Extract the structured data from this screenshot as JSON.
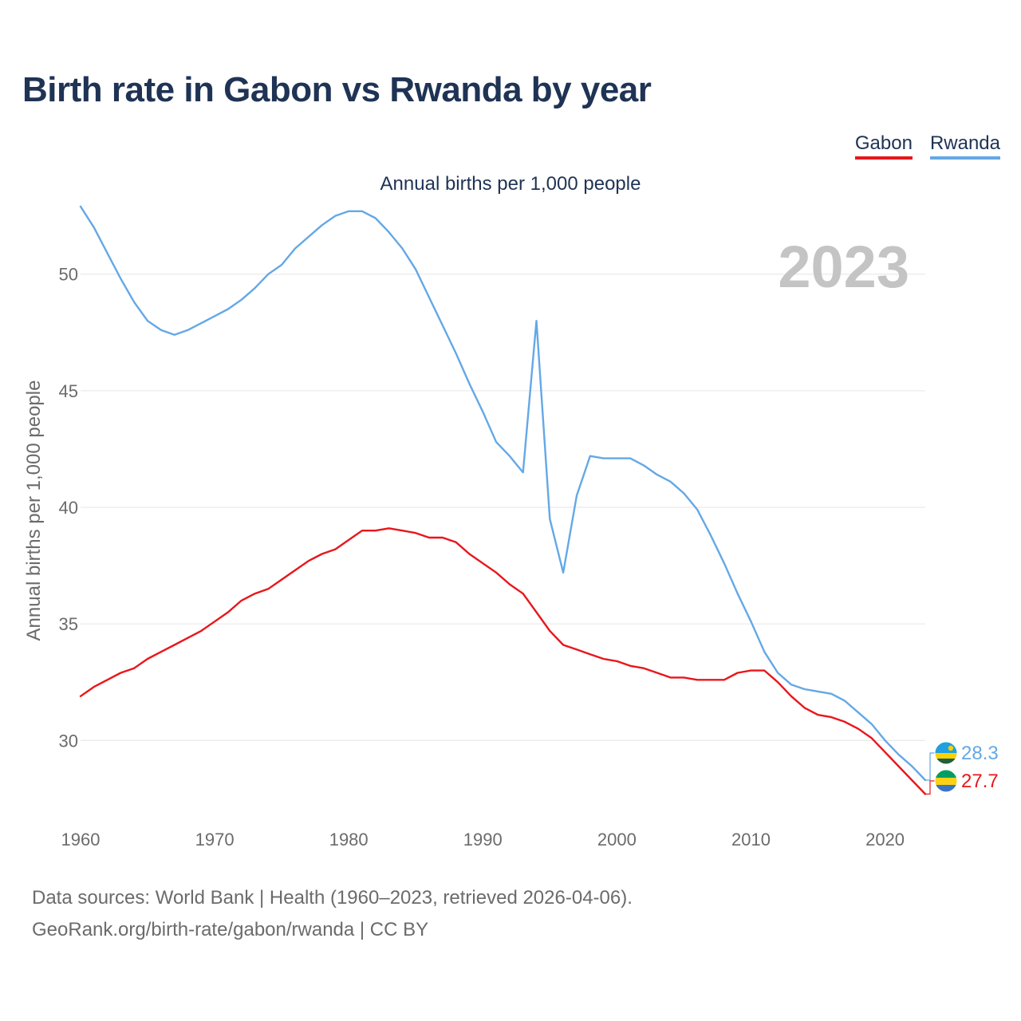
{
  "title": "Birth rate in Gabon vs Rwanda by year",
  "subtitle": "Annual births per 1,000 people",
  "legend": [
    {
      "name": "Gabon",
      "color": "#e8161b"
    },
    {
      "name": "Rwanda",
      "color": "#64a8e6"
    }
  ],
  "year_label": "2023",
  "sources": {
    "line1": "Data sources: World Bank | Health (1960–2023, retrieved 2026-04-06).",
    "line2": "GeoRank.org/birth-rate/gabon/rwanda | CC BY"
  },
  "chart_data": {
    "type": "line",
    "title": "Birth rate in Gabon vs Rwanda by year",
    "subtitle": "Annual births per 1,000 people",
    "xlabel": "",
    "ylabel": "Annual births per 1,000 people",
    "xlim": [
      1960,
      2023
    ],
    "ylim": [
      27,
      53
    ],
    "xticks": [
      1960,
      1970,
      1980,
      1990,
      2000,
      2010,
      2020
    ],
    "yticks": [
      30,
      35,
      40,
      45,
      50
    ],
    "grid": true,
    "legend_position": "top-right",
    "x": [
      1960,
      1961,
      1962,
      1963,
      1964,
      1965,
      1966,
      1967,
      1968,
      1969,
      1970,
      1971,
      1972,
      1973,
      1974,
      1975,
      1976,
      1977,
      1978,
      1979,
      1980,
      1981,
      1982,
      1983,
      1984,
      1985,
      1986,
      1987,
      1988,
      1989,
      1990,
      1991,
      1992,
      1993,
      1994,
      1995,
      1996,
      1997,
      1998,
      1999,
      2000,
      2001,
      2002,
      2003,
      2004,
      2005,
      2006,
      2007,
      2008,
      2009,
      2010,
      2011,
      2012,
      2013,
      2014,
      2015,
      2016,
      2017,
      2018,
      2019,
      2020,
      2021,
      2022,
      2023
    ],
    "series": [
      {
        "name": "Gabon",
        "color": "#e8161b",
        "end_label": "27.7",
        "values": [
          31.9,
          32.3,
          32.6,
          32.9,
          33.1,
          33.5,
          33.8,
          34.1,
          34.4,
          34.7,
          35.1,
          35.5,
          36.0,
          36.3,
          36.5,
          36.9,
          37.3,
          37.7,
          38.0,
          38.2,
          38.6,
          39.0,
          39.0,
          39.1,
          39.0,
          38.9,
          38.7,
          38.7,
          38.5,
          38.0,
          37.6,
          37.2,
          36.7,
          36.3,
          35.5,
          34.7,
          34.1,
          33.9,
          33.7,
          33.5,
          33.4,
          33.2,
          33.1,
          32.9,
          32.7,
          32.7,
          32.6,
          32.6,
          32.6,
          32.9,
          33.0,
          33.0,
          32.5,
          31.9,
          31.4,
          31.1,
          31.0,
          30.8,
          30.5,
          30.1,
          29.5,
          28.9,
          28.3,
          27.7
        ]
      },
      {
        "name": "Rwanda",
        "color": "#64a8e6",
        "end_label": "28.3",
        "values": [
          52.9,
          52.0,
          50.9,
          49.8,
          48.8,
          48.0,
          47.6,
          47.4,
          47.6,
          47.9,
          48.2,
          48.5,
          48.9,
          49.4,
          50.0,
          50.4,
          51.1,
          51.6,
          52.1,
          52.5,
          52.7,
          52.7,
          52.4,
          51.8,
          51.1,
          50.2,
          49.0,
          47.8,
          46.6,
          45.3,
          44.1,
          42.8,
          42.2,
          41.5,
          48.0,
          39.5,
          37.2,
          40.5,
          42.2,
          42.1,
          42.1,
          42.1,
          41.8,
          41.4,
          41.1,
          40.6,
          39.9,
          38.8,
          37.6,
          36.3,
          35.1,
          33.8,
          32.9,
          32.4,
          32.2,
          32.1,
          32.0,
          31.7,
          31.2,
          30.7,
          30.0,
          29.4,
          28.9,
          28.3
        ]
      }
    ]
  }
}
